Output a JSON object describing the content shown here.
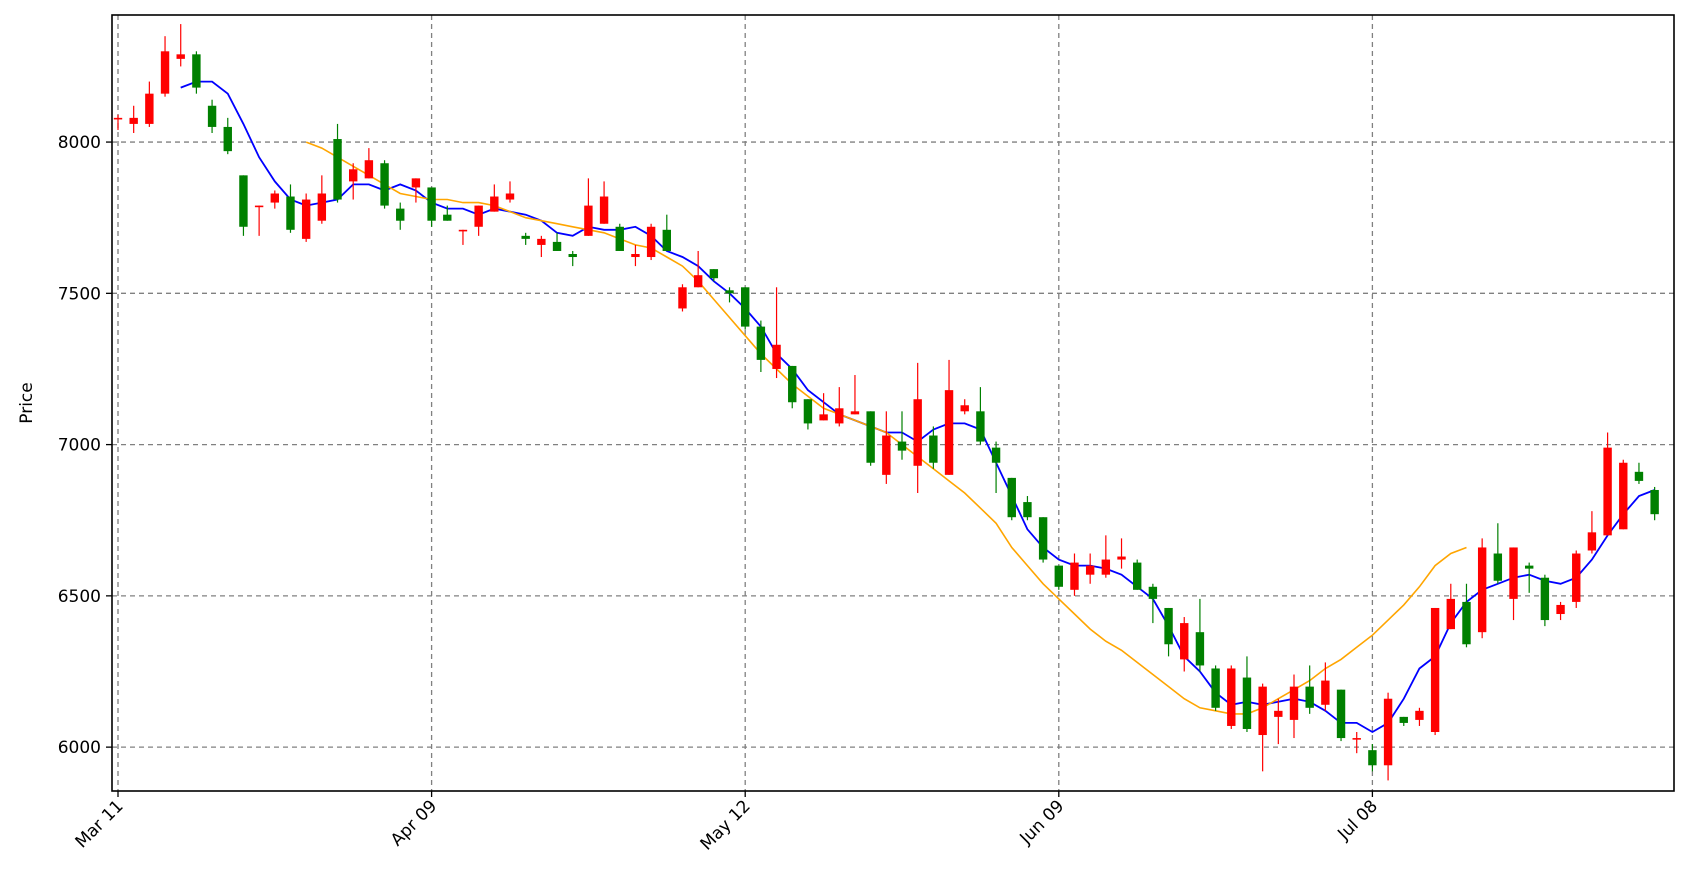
{
  "chart_data": {
    "type": "candlestick",
    "title": "",
    "xlabel": "",
    "ylabel": "Price",
    "ylim": [
      5855,
      8420
    ],
    "grid": true,
    "colors": {
      "up": "#ff0000",
      "down": "#008000",
      "ma_short": "#0000ff",
      "ma_long": "#ffa500",
      "grid": "#808080"
    },
    "x_tick_labels": [
      {
        "label": "Mar 11",
        "index": 0
      },
      {
        "label": "Apr 09",
        "index": 20
      },
      {
        "label": "May 12",
        "index": 40
      },
      {
        "label": "Jun 09",
        "index": 60
      },
      {
        "label": "Jul 08",
        "index": 80
      }
    ],
    "y_ticks": [
      6000,
      6500,
      7000,
      7500,
      8000
    ],
    "candles": [
      [
        8080,
        8080,
        8090,
        8040
      ],
      [
        8060,
        8080,
        8120,
        8030
      ],
      [
        8060,
        8160,
        8200,
        8050
      ],
      [
        8160,
        8300,
        8350,
        8150
      ],
      [
        8275,
        8290,
        8390,
        8250
      ],
      [
        8290,
        8180,
        8300,
        8160
      ],
      [
        8120,
        8050,
        8140,
        8030
      ],
      [
        8050,
        7970,
        8080,
        7960
      ],
      [
        7890,
        7720,
        7890,
        7690
      ],
      [
        7790,
        7790,
        7790,
        7690
      ],
      [
        7800,
        7830,
        7840,
        7780
      ],
      [
        7820,
        7710,
        7860,
        7700
      ],
      [
        7680,
        7810,
        7830,
        7670
      ],
      [
        7740,
        7830,
        7890,
        7730
      ],
      [
        8010,
        7810,
        8060,
        7800
      ],
      [
        7870,
        7910,
        7930,
        7810
      ],
      [
        7880,
        7940,
        7980,
        7880
      ],
      [
        7930,
        7790,
        7940,
        7780
      ],
      [
        7780,
        7740,
        7800,
        7710
      ],
      [
        7850,
        7880,
        7880,
        7800
      ],
      [
        7850,
        7740,
        7850,
        7720
      ],
      [
        7760,
        7740,
        7790,
        7740
      ],
      [
        7710,
        7710,
        7710,
        7660
      ],
      [
        7720,
        7790,
        7790,
        7690
      ],
      [
        7770,
        7820,
        7860,
        7770
      ],
      [
        7810,
        7830,
        7870,
        7800
      ],
      [
        7690,
        7680,
        7700,
        7660
      ],
      [
        7660,
        7680,
        7690,
        7620
      ],
      [
        7670,
        7640,
        7700,
        7640
      ],
      [
        7630,
        7620,
        7640,
        7590
      ],
      [
        7690,
        7790,
        7880,
        7690
      ],
      [
        7730,
        7820,
        7870,
        7730
      ],
      [
        7720,
        7640,
        7730,
        7640
      ],
      [
        7620,
        7630,
        7660,
        7590
      ],
      [
        7620,
        7720,
        7730,
        7610
      ],
      [
        7710,
        7640,
        7760,
        7640
      ],
      [
        7450,
        7520,
        7530,
        7440
      ],
      [
        7520,
        7560,
        7640,
        7520
      ],
      [
        7580,
        7550,
        7580,
        7540
      ],
      [
        7510,
        7500,
        7520,
        7470
      ],
      [
        7520,
        7390,
        7520,
        7380
      ],
      [
        7390,
        7280,
        7410,
        7240
      ],
      [
        7250,
        7330,
        7520,
        7220
      ],
      [
        7260,
        7140,
        7260,
        7120
      ],
      [
        7150,
        7070,
        7150,
        7050
      ],
      [
        7080,
        7100,
        7170,
        7080
      ],
      [
        7070,
        7120,
        7190,
        7060
      ],
      [
        7100,
        7110,
        7230,
        7100
      ],
      [
        7110,
        6940,
        7110,
        6930
      ],
      [
        6900,
        7030,
        7110,
        6870
      ],
      [
        7010,
        6980,
        7110,
        6950
      ],
      [
        6930,
        7150,
        7270,
        6840
      ],
      [
        7030,
        6940,
        7060,
        6920
      ],
      [
        6900,
        7180,
        7280,
        6900
      ],
      [
        7110,
        7130,
        7150,
        7100
      ],
      [
        7110,
        7010,
        7190,
        7000
      ],
      [
        6990,
        6940,
        7010,
        6840
      ],
      [
        6890,
        6760,
        6890,
        6750
      ],
      [
        6810,
        6760,
        6830,
        6750
      ],
      [
        6760,
        6620,
        6760,
        6610
      ],
      [
        6600,
        6530,
        6600,
        6520
      ],
      [
        6520,
        6610,
        6640,
        6500
      ],
      [
        6570,
        6600,
        6640,
        6540
      ],
      [
        6570,
        6620,
        6700,
        6560
      ],
      [
        6620,
        6630,
        6690,
        6590
      ],
      [
        6610,
        6520,
        6620,
        6520
      ],
      [
        6530,
        6490,
        6540,
        6410
      ],
      [
        6460,
        6340,
        6460,
        6300
      ],
      [
        6290,
        6410,
        6430,
        6250
      ],
      [
        6380,
        6270,
        6490,
        6250
      ],
      [
        6260,
        6130,
        6270,
        6120
      ],
      [
        6070,
        6260,
        6270,
        6060
      ],
      [
        6230,
        6060,
        6300,
        6050
      ],
      [
        6040,
        6200,
        6210,
        5920
      ],
      [
        6100,
        6120,
        6160,
        6010
      ],
      [
        6090,
        6200,
        6240,
        6030
      ],
      [
        6200,
        6130,
        6270,
        6110
      ],
      [
        6140,
        6220,
        6280,
        6120
      ],
      [
        6190,
        6030,
        6190,
        6020
      ],
      [
        6030,
        6030,
        6050,
        5980
      ],
      [
        5990,
        5940,
        6010,
        5920
      ],
      [
        5940,
        6160,
        6180,
        5890
      ],
      [
        6100,
        6080,
        6100,
        6070
      ],
      [
        6090,
        6120,
        6130,
        6070
      ],
      [
        6050,
        6460,
        6460,
        6040
      ],
      [
        6390,
        6490,
        6540,
        6390
      ],
      [
        6480,
        6340,
        6540,
        6330
      ],
      [
        6380,
        6660,
        6690,
        6360
      ],
      [
        6640,
        6550,
        6740,
        6540
      ],
      [
        6490,
        6660,
        6660,
        6420
      ],
      [
        6600,
        6590,
        6610,
        6510
      ],
      [
        6560,
        6420,
        6570,
        6400
      ],
      [
        6440,
        6470,
        6480,
        6420
      ],
      [
        6480,
        6640,
        6650,
        6460
      ],
      [
        6650,
        6710,
        6780,
        6640
      ],
      [
        6700,
        6990,
        7040,
        6700
      ],
      [
        6720,
        6940,
        6950,
        6720
      ],
      [
        6910,
        6880,
        6940,
        6870
      ],
      [
        6850,
        6770,
        6860,
        6750
      ]
    ],
    "series": [
      {
        "name": "",
        "color": "#0000ff",
        "start_index": 4,
        "values": [
          8180,
          8200,
          8200,
          8160,
          8060,
          7950,
          7870,
          7810,
          7790,
          7800,
          7810,
          7860,
          7860,
          7840,
          7860,
          7840,
          7800,
          7780,
          7780,
          7760,
          7780,
          7770,
          7760,
          7740,
          7700,
          7690,
          7720,
          7710,
          7710,
          7720,
          7690,
          7640,
          7620,
          7590,
          7540,
          7500,
          7450,
          7390,
          7300,
          7250,
          7180,
          7140,
          7100,
          7080,
          7060,
          7040,
          7040,
          7010,
          7050,
          7070,
          7070,
          7050,
          6940,
          6830,
          6720,
          6660,
          6620,
          6600,
          6600,
          6590,
          6570,
          6530,
          6490,
          6400,
          6300,
          6250,
          6180,
          6140,
          6150,
          6140,
          6150,
          6160,
          6150,
          6120,
          6080,
          6080,
          6050,
          6080,
          6160,
          6260,
          6300,
          6410,
          6480,
          6520,
          6540,
          6560,
          6570,
          6550,
          6540,
          6560,
          6620,
          6700,
          6770,
          6830,
          6850
        ]
      },
      {
        "name": "",
        "color": "#ffa500",
        "start_index": 12,
        "values": [
          8000,
          7980,
          7950,
          7920,
          7890,
          7860,
          7830,
          7820,
          7810,
          7810,
          7800,
          7800,
          7790,
          7770,
          7750,
          7740,
          7730,
          7720,
          7710,
          7700,
          7680,
          7660,
          7650,
          7620,
          7590,
          7540,
          7480,
          7420,
          7360,
          7300,
          7250,
          7200,
          7160,
          7120,
          7100,
          7080,
          7060,
          7040,
          7000,
          6960,
          6920,
          6880,
          6840,
          6790,
          6740,
          6660,
          6600,
          6540,
          6490,
          6440,
          6390,
          6350,
          6320,
          6280,
          6240,
          6200,
          6160,
          6130,
          6120,
          6110,
          6110,
          6130,
          6160,
          6190,
          6220,
          6260,
          6290,
          6330,
          6370,
          6420,
          6470,
          6530,
          6600,
          6640,
          6660
        ]
      }
    ]
  }
}
